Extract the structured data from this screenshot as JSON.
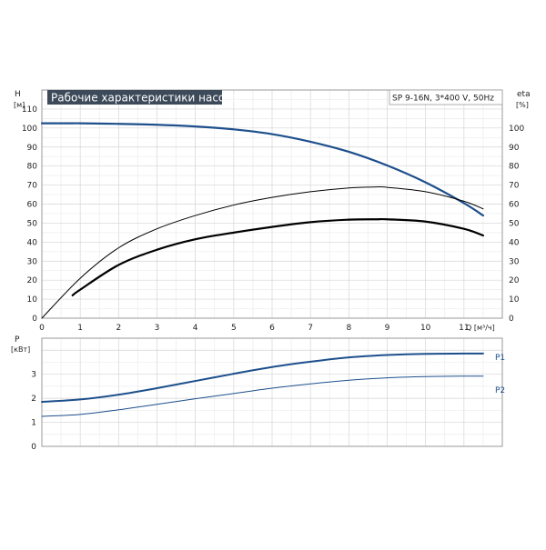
{
  "chart_data": [
    {
      "type": "line",
      "title": "Рабочие характеристики насоса",
      "model_label": "SP 9-16N, 3*400 V, 50Hz",
      "xlabel": "Q [м³/ч]",
      "ylabel_left": "H",
      "ylabel_left_unit": "[м]",
      "ylabel_right": "eta",
      "ylabel_right_unit": "[%]",
      "xlim": [
        0,
        12
      ],
      "ylim_left": [
        0,
        120
      ],
      "ylim_right": [
        0,
        120
      ],
      "x_ticks": [
        "0",
        "1",
        "2",
        "3",
        "4",
        "5",
        "6",
        "7",
        "8",
        "9",
        "10",
        "11"
      ],
      "y_ticks_left": [
        "0",
        "10",
        "20",
        "30",
        "40",
        "50",
        "60",
        "70",
        "80",
        "90",
        "100",
        "110"
      ],
      "y_ticks_right": [
        "0",
        "10",
        "20",
        "30",
        "40",
        "50",
        "60",
        "70",
        "80",
        "90",
        "100"
      ],
      "grid": true,
      "series": [
        {
          "axis": "left",
          "color": "#1d4f8c",
          "x": [
            0,
            0.8,
            1,
            2,
            3,
            4,
            5,
            6,
            7,
            8,
            9,
            10,
            11,
            11.5
          ],
          "values": [
            102.5,
            102.5,
            102.5,
            102.2,
            101.7,
            100.8,
            99.3,
            96.8,
            92.8,
            87.5,
            80.3,
            71.4,
            60.5,
            54
          ],
          "width": 2.2
        },
        {
          "axis": "left",
          "color": "#000000",
          "x": [
            0,
            1,
            2,
            3,
            4,
            5,
            6,
            7,
            8,
            8.7,
            9,
            10,
            11,
            11.5
          ],
          "values": [
            0,
            21,
            37,
            47,
            54,
            59.5,
            63.5,
            66.5,
            68.5,
            69,
            68.8,
            66.5,
            61.5,
            57.5
          ],
          "width": 1
        },
        {
          "axis": "right",
          "color": "#000000",
          "x": [
            0.8,
            1,
            2,
            3,
            4,
            5,
            6,
            7,
            8,
            8.7,
            9,
            10,
            11,
            11.5
          ],
          "values": [
            12,
            15,
            28,
            36,
            41.5,
            45,
            48,
            50.5,
            51.8,
            52,
            52,
            50.8,
            47,
            43.5
          ],
          "width": 2.2
        }
      ]
    },
    {
      "type": "line",
      "ylabel": "P",
      "ylabel_unit": "[кВт]",
      "xlim": [
        0,
        12
      ],
      "ylim": [
        0,
        4.5
      ],
      "y_ticks": [
        "0",
        "1",
        "2",
        "3"
      ],
      "grid": true,
      "series": [
        {
          "name": "P1",
          "color": "#1d4f8c",
          "x": [
            0,
            1,
            2,
            3,
            4,
            5,
            6,
            7,
            8,
            9,
            10,
            11,
            11.5
          ],
          "values": [
            1.85,
            1.95,
            2.15,
            2.42,
            2.72,
            3.02,
            3.3,
            3.52,
            3.7,
            3.8,
            3.85,
            3.86,
            3.86
          ],
          "width": 2
        },
        {
          "name": "P2",
          "color": "#1d4f8c",
          "x": [
            0,
            1,
            2,
            3,
            4,
            5,
            6,
            7,
            8,
            9,
            10,
            11,
            11.5
          ],
          "values": [
            1.25,
            1.33,
            1.52,
            1.75,
            1.98,
            2.2,
            2.42,
            2.6,
            2.75,
            2.85,
            2.9,
            2.92,
            2.92
          ],
          "width": 1
        }
      ]
    }
  ]
}
